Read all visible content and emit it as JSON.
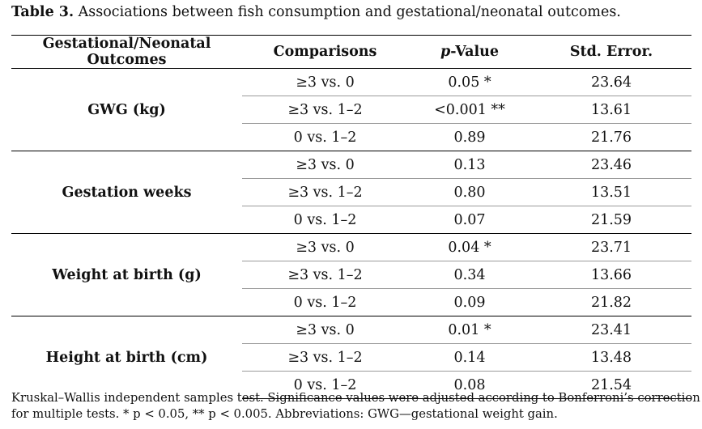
{
  "caption": {
    "label": "Table 3.",
    "text": "Associations between fish consumption and gestational/neonatal outcomes."
  },
  "table": {
    "headers": {
      "outcome": "Gestational/Neonatal Outcomes",
      "comparisons": "Comparisons",
      "pvalue_italic": "p",
      "pvalue_rest": "-Value",
      "stderr": "Std. Error."
    },
    "groups": [
      {
        "name": "GWG (kg)",
        "rows": [
          {
            "comparison": "≥3 vs. 0",
            "p": "0.05 *",
            "se": "23.64"
          },
          {
            "comparison": "≥3 vs. 1–2",
            "p": "<0.001 **",
            "se": "13.61"
          },
          {
            "comparison": "0 vs. 1–2",
            "p": "0.89",
            "se": "21.76"
          }
        ]
      },
      {
        "name": "Gestation weeks",
        "rows": [
          {
            "comparison": "≥3 vs. 0",
            "p": "0.13",
            "se": "23.46"
          },
          {
            "comparison": "≥3 vs. 1–2",
            "p": "0.80",
            "se": "13.51"
          },
          {
            "comparison": "0 vs. 1–2",
            "p": "0.07",
            "se": "21.59"
          }
        ]
      },
      {
        "name": "Weight at birth (g)",
        "rows": [
          {
            "comparison": "≥3 vs. 0",
            "p": "0.04 *",
            "se": "23.71"
          },
          {
            "comparison": "≥3 vs. 1–2",
            "p": "0.34",
            "se": "13.66"
          },
          {
            "comparison": "0 vs. 1–2",
            "p": "0.09",
            "se": "21.82"
          }
        ]
      },
      {
        "name": "Height at birth (cm)",
        "rows": [
          {
            "comparison": "≥3 vs. 0",
            "p": "0.01 *",
            "se": "23.41"
          },
          {
            "comparison": "≥3 vs. 1–2",
            "p": "0.14",
            "se": "13.48"
          },
          {
            "comparison": "0 vs. 1–2",
            "p": "0.08",
            "se": "21.54"
          }
        ]
      }
    ]
  },
  "footnote": {
    "line1": "Kruskal–Wallis independent samples test. Significance values were adjusted according to Bonferroni’s correction",
    "line2": "for multiple tests. * p < 0.05, ** p < 0.005. Abbreviations: GWG—gestational weight gain."
  }
}
